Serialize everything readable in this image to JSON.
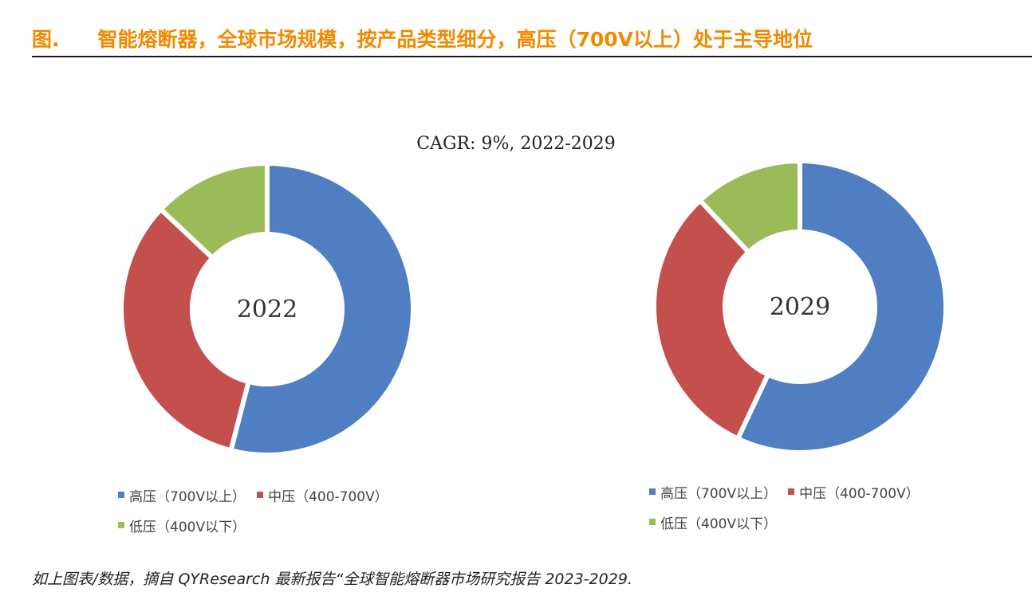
{
  "figure": {
    "label": "图.",
    "title": "智能熔断器，全球市场规模，按产品类型细分，高压（700V以上）处于主导地位"
  },
  "cagr_text": "CAGR: 9%, 2022-2029",
  "colors": {
    "title": "#f08a00",
    "high_voltage": "#4f7ec2",
    "mid_voltage": "#c4504d",
    "low_voltage": "#9bbb59"
  },
  "legend": {
    "high": "高压（700V以上）",
    "mid": "中压（400-700V）",
    "low": "低压（400V以下）"
  },
  "source": "如上图表/数据，摘自 QYResearch 最新报告“全球智能熔断器市场研究报告 2023-2029.",
  "chart_data": [
    {
      "type": "pie",
      "donut": true,
      "center_label": "2022",
      "categories": [
        "高压（700V以上）",
        "中压（400-700V）",
        "低压（400V以下）"
      ],
      "values": [
        54,
        33,
        13
      ],
      "colors": [
        "#4f7ec2",
        "#c4504d",
        "#9bbb59"
      ],
      "legend_position": "bottom"
    },
    {
      "type": "pie",
      "donut": true,
      "center_label": "2029",
      "categories": [
        "高压（700V以上）",
        "中压（400-700V）",
        "低压（400V以下）"
      ],
      "values": [
        57,
        31,
        12
      ],
      "colors": [
        "#4f7ec2",
        "#c4504d",
        "#9bbb59"
      ],
      "legend_position": "bottom"
    }
  ]
}
